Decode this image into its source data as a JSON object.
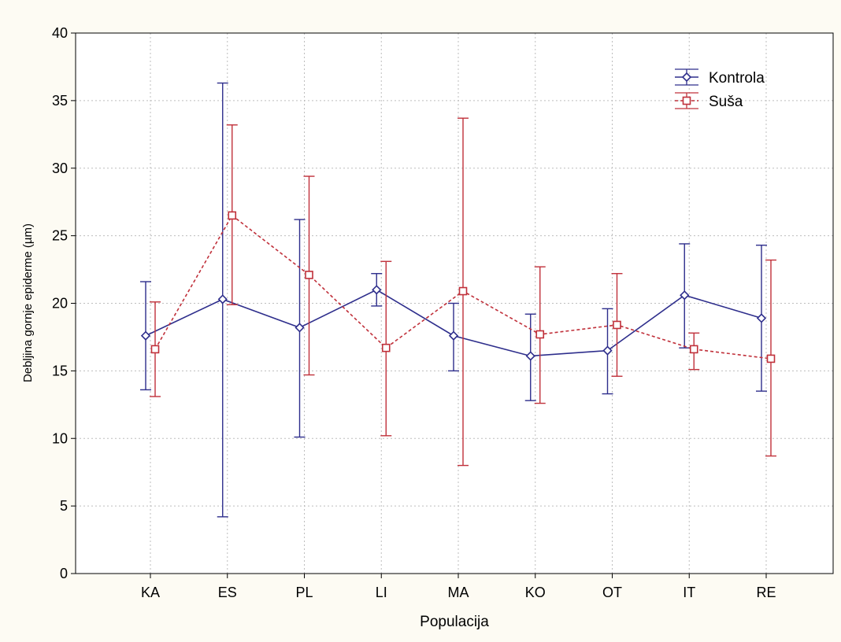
{
  "chart_data": {
    "type": "line",
    "title": "",
    "xlabel": "Populacija",
    "ylabel": "Debljina gornje epiderme (µm)",
    "ylim": [
      0,
      40
    ],
    "yticks": [
      "0",
      "5",
      "10",
      "15",
      "20",
      "25",
      "30",
      "35",
      "40"
    ],
    "categories": [
      "KA",
      "ES",
      "PL",
      "LI",
      "MA",
      "KO",
      "OT",
      "IT",
      "RE"
    ],
    "grid": true,
    "legend_position": "top-right",
    "series": [
      {
        "name": "Kontrola",
        "color": "#2e2e8c",
        "marker": "diamond",
        "line_style": "solid",
        "values": [
          17.6,
          20.3,
          18.2,
          21.0,
          17.6,
          16.1,
          16.5,
          20.6,
          18.9
        ],
        "lower": [
          13.6,
          4.2,
          10.1,
          19.8,
          15.0,
          12.8,
          13.3,
          16.7,
          13.5
        ],
        "upper": [
          21.6,
          36.3,
          26.2,
          22.2,
          20.0,
          19.2,
          19.6,
          24.4,
          24.3
        ]
      },
      {
        "name": "Suša",
        "color": "#c0303a",
        "marker": "square",
        "line_style": "dashed",
        "values": [
          16.6,
          26.5,
          22.1,
          16.7,
          20.9,
          17.7,
          18.4,
          16.6,
          15.9
        ],
        "lower": [
          13.1,
          19.9,
          14.7,
          10.2,
          8.0,
          12.6,
          14.6,
          15.1,
          8.7
        ],
        "upper": [
          20.1,
          33.2,
          29.4,
          23.1,
          33.7,
          22.7,
          22.2,
          17.8,
          23.2
        ]
      }
    ]
  }
}
